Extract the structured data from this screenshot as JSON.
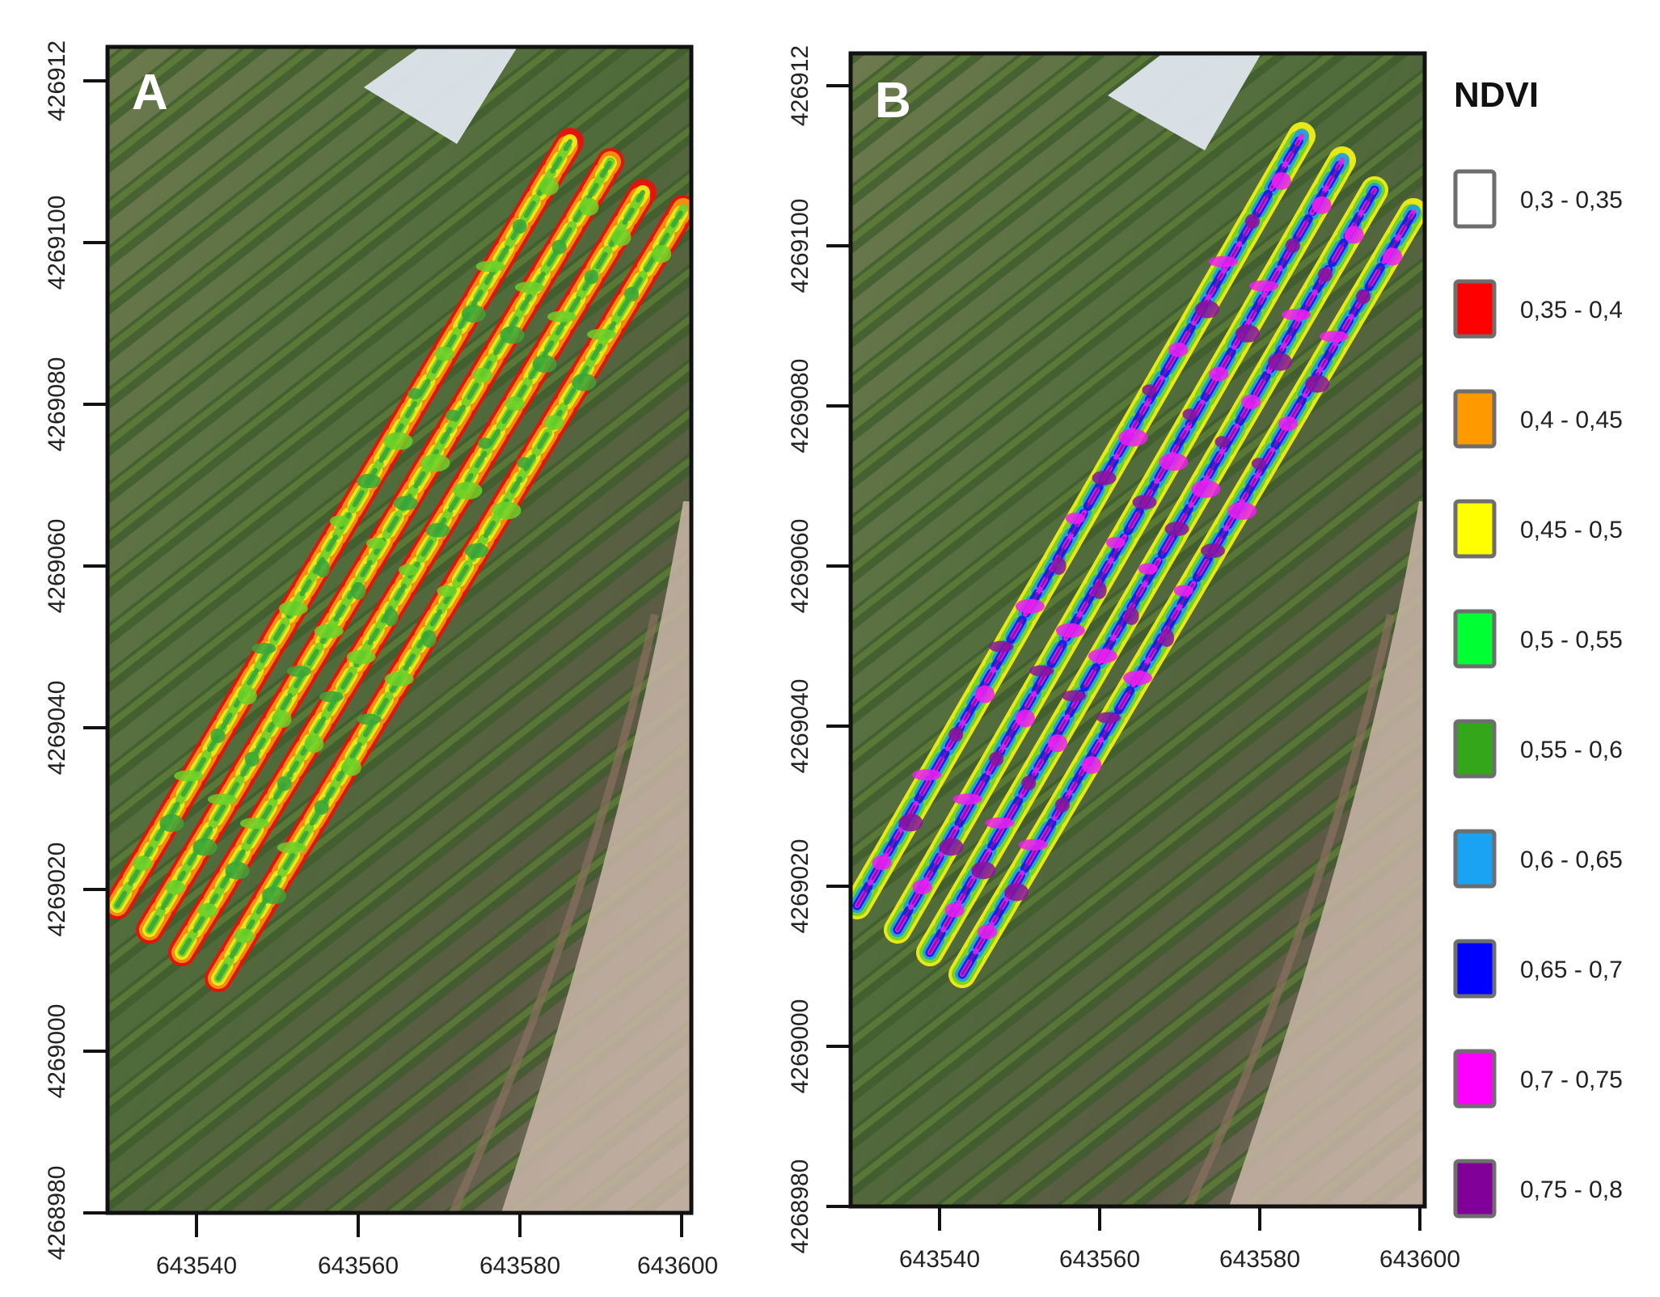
{
  "panels": [
    {
      "letter": "A",
      "x_ticks": [
        "643540",
        "643560",
        "643580",
        "643600"
      ],
      "y_ticks": [
        "4268980",
        "4269000",
        "4269020",
        "4269040",
        "4269060",
        "4269080",
        "4269100",
        "426912"
      ],
      "ndvi_range": "low",
      "stripe_colors": [
        "#e8120b",
        "#f39a12",
        "#f3ef17",
        "#6bd129",
        "#3aa63a"
      ]
    },
    {
      "letter": "B",
      "x_ticks": [
        "643540",
        "643560",
        "643580",
        "643600"
      ],
      "y_ticks": [
        "4268980",
        "4269000",
        "4269020",
        "4269040",
        "4269060",
        "4269080",
        "4269100",
        "426912"
      ],
      "ndvi_range": "high",
      "stripe_colors": [
        "#f3ef17",
        "#6bd129",
        "#1c9ee6",
        "#1414e6",
        "#f11ef1",
        "#8c149c"
      ]
    }
  ],
  "legend": {
    "title": "NDVI",
    "items": [
      {
        "label": "0,3 - 0,35",
        "color": "#ffffff"
      },
      {
        "label": "0,35 - 0,4",
        "color": "#ff0000"
      },
      {
        "label": "0,4 - 0,45",
        "color": "#ff9900"
      },
      {
        "label": "0,45 - 0,5",
        "color": "#ffff00"
      },
      {
        "label": "0,5 - 0,55",
        "color": "#00ff33"
      },
      {
        "label": "0,55 - 0,6",
        "color": "#33a61a"
      },
      {
        "label": "0,6 - 0,65",
        "color": "#1aa3f2"
      },
      {
        "label": "0,65 - 0,7",
        "color": "#0000ff"
      },
      {
        "label": "0,7 - 0,75",
        "color": "#ff00ff"
      },
      {
        "label": "0,75 - 0,8",
        "color": "#800099"
      }
    ]
  }
}
